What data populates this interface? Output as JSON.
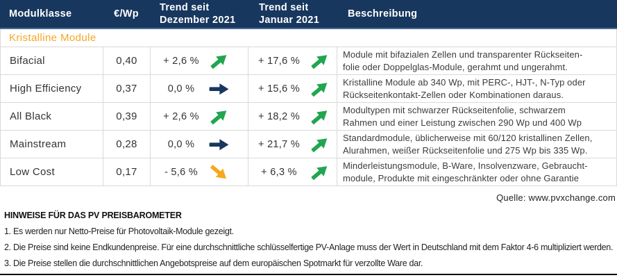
{
  "colors": {
    "header_bg": "#17375E",
    "header_text": "#FFFFFF",
    "header_accent_line": "#4A6D96",
    "section_text": "#F5A623",
    "trend_up": "#22A550",
    "trend_flat": "#17375E",
    "trend_down": "#F5A81C",
    "grid_border": "#D9D9D9",
    "body_text": "#3B3B3B"
  },
  "table": {
    "headers": {
      "module_class": "Modulklasse",
      "price": "€/Wp",
      "trend_december": "Trend seit\nDezember 2021",
      "trend_january": "Trend seit\nJanuar 2021",
      "description": "Beschreibung"
    },
    "section": "Kristalline Module",
    "rows": [
      {
        "name": "Bifacial",
        "price": "0,40",
        "trend_dec": {
          "value": "+ 2,6 %",
          "direction": "up"
        },
        "trend_jan": {
          "value": "+ 17,6 %",
          "direction": "up"
        },
        "description": "Module mit bifazialen Zellen und transparenter Rückseiten-\nfolie oder Doppelglas-Module, gerahmt und ungerahmt."
      },
      {
        "name": "High Efficiency",
        "price": "0,37",
        "trend_dec": {
          "value": "0,0 %",
          "direction": "flat"
        },
        "trend_jan": {
          "value": "+ 15,6 %",
          "direction": "up"
        },
        "description": "Kristalline Module ab 340 Wp, mit PERC-, HJT-, N-Typ oder\nRückseitenkontakt-Zellen oder Kombinationen daraus."
      },
      {
        "name": "All Black",
        "price": "0,39",
        "trend_dec": {
          "value": "+ 2,6 %",
          "direction": "up"
        },
        "trend_jan": {
          "value": "+ 18,2 %",
          "direction": "up"
        },
        "description": "Modultypen mit schwarzer Rückseitenfolie, schwarzem\nRahmen und einer Leistung  zwischen 290 Wp und 400 Wp"
      },
      {
        "name": "Mainstream",
        "price": "0,28",
        "trend_dec": {
          "value": "0,0 %",
          "direction": "flat"
        },
        "trend_jan": {
          "value": "+ 21,7 %",
          "direction": "up"
        },
        "description": "Standardmodule, üblicherweise mit 60/120 kristallinen Zellen,\nAlurahmen, weißer Rückseitenfolie und 275 Wp bis 335 Wp."
      },
      {
        "name": "Low Cost",
        "price": "0,17",
        "trend_dec": {
          "value": "- 5,6 %",
          "direction": "down"
        },
        "trend_jan": {
          "value": "+  6,3 %",
          "direction": "up"
        },
        "description": "Minderleistungsmodule, B-Ware, Insolvenzware, Gebraucht-\nmodule, Produkte mit eingeschränkter oder ohne Garantie"
      }
    ]
  },
  "source": "Quelle: www.pvxchange.com",
  "notes": {
    "heading": "HINWEISE FÜR DAS PV PREISBAROMETER",
    "items": [
      "1.  Es werden nur Netto-Preise für Photovoltaik-Module gezeigt.",
      "2. Die Preise sind keine Endkundenpreise. Für eine durchschnittliche schlüsselfertige PV-Anlage muss der Wert in Deutschland mit dem Faktor 4-6 multipliziert werden.",
      "3. Die Preise stellen die durchschnittlichen Angebotspreise auf dem europäischen Spotmarkt für verzollte Ware dar."
    ]
  }
}
